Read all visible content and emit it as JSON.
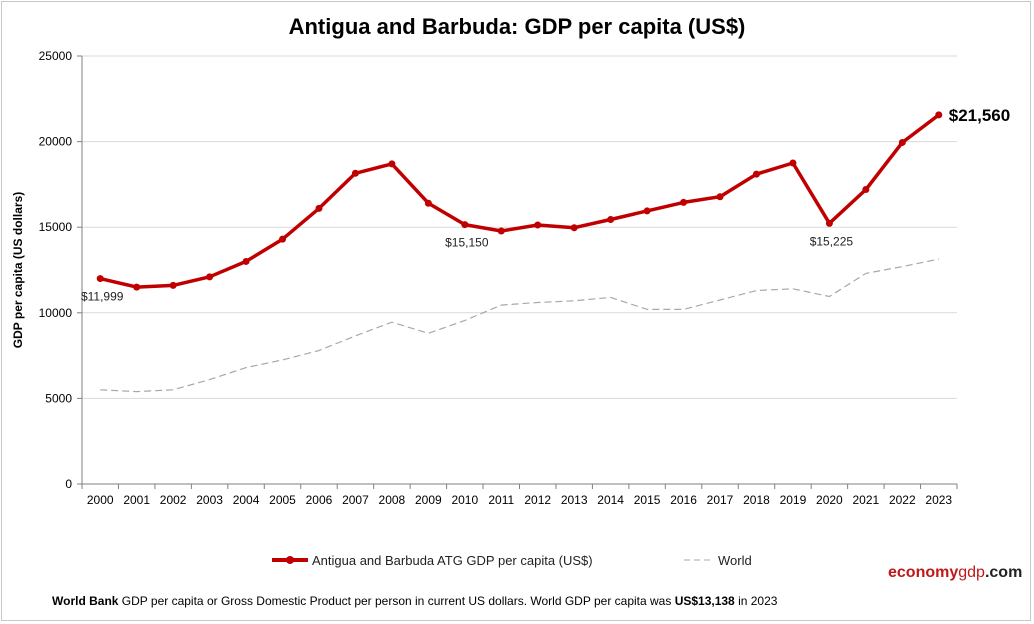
{
  "chart_data": {
    "type": "line",
    "title": "Antigua and Barbuda: GDP per capita (US$)",
    "ylabel": "GDP per capita (US dollars)",
    "xlabel": "",
    "ylim": [
      0,
      25000
    ],
    "yticks": [
      0,
      5000,
      10000,
      15000,
      20000,
      25000
    ],
    "ytick_labels": [
      "0",
      "5000",
      "10000",
      "15000",
      "20000",
      "25000"
    ],
    "grid": "horizontal",
    "legend_position": "bottom",
    "categories": [
      "2000",
      "2001",
      "2002",
      "2003",
      "2004",
      "2005",
      "2006",
      "2007",
      "2008",
      "2009",
      "2010",
      "2011",
      "2012",
      "2013",
      "2014",
      "2015",
      "2016",
      "2017",
      "2018",
      "2019",
      "2020",
      "2021",
      "2022",
      "2023"
    ],
    "series": [
      {
        "name": "Antigua and Barbuda ATG GDP per capita (US$)",
        "color": "#c00000",
        "style": "solid-markers",
        "values": [
          11999,
          11500,
          11600,
          12100,
          13000,
          14300,
          16100,
          18150,
          18700,
          16400,
          15150,
          14780,
          15130,
          14970,
          15450,
          15950,
          16450,
          16780,
          18100,
          18750,
          15225,
          17200,
          19950,
          21560
        ]
      },
      {
        "name": "World",
        "color": "#a8a8a8",
        "style": "dashed",
        "values": [
          5500,
          5400,
          5500,
          6100,
          6800,
          7250,
          7800,
          8650,
          9450,
          8800,
          9550,
          10450,
          10600,
          10700,
          10900,
          10200,
          10200,
          10750,
          11300,
          11400,
          10950,
          12300,
          12700,
          13138
        ]
      }
    ],
    "annotations": [
      {
        "label": "$11,999",
        "year": "2000",
        "value": 11999,
        "placement": "below"
      },
      {
        "label": "$15,150",
        "year": "2010",
        "value": 15150,
        "placement": "below"
      },
      {
        "label": "$15,225",
        "year": "2020",
        "value": 15225,
        "placement": "below"
      },
      {
        "label": "$21,560",
        "year": "2023",
        "value": 21560,
        "placement": "right-bold"
      }
    ]
  },
  "legend": {
    "antigua_label": "Antigua and Barbuda ATG GDP per capita (US$)",
    "world_label": "World"
  },
  "brand": {
    "part1": "economy",
    "part2": "gdp",
    "part3": ".com"
  },
  "footnote": {
    "source": "World Bank",
    "text1": " GDP per capita or Gross Domestic Product per person  in current US dollars.   World GDP per capita was ",
    "world_value": "US$13,138",
    "text2": "  in 2023"
  },
  "colors": {
    "primary_line": "#c00000",
    "world_line": "#a8a8a8",
    "gridline": "#d9d9d9",
    "brand_red": "#c0181a"
  }
}
